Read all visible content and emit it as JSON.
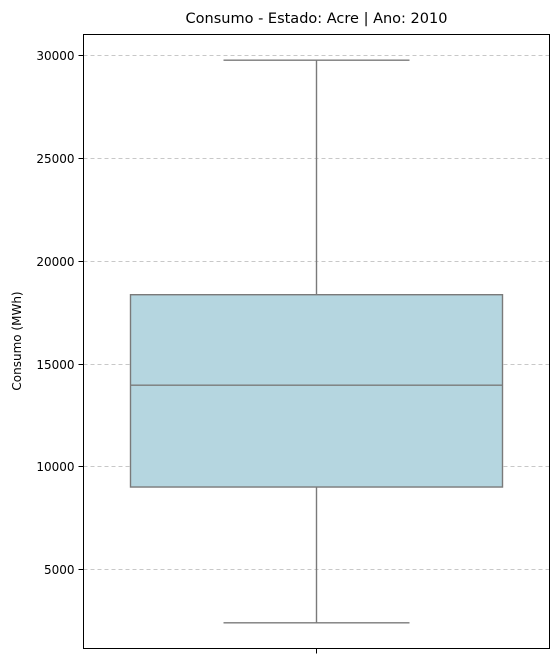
{
  "chart_data": {
    "type": "box",
    "title": "Consumo - Estado: Acre | Ano: 2010",
    "xlabel": "",
    "ylabel": "Consumo (MWh)",
    "ylim": [
      1150,
      31000
    ],
    "yticks": [
      "5000",
      "10000",
      "15000",
      "20000",
      "25000",
      "30000"
    ],
    "grid": "y-dashed",
    "box": {
      "whisker_low": 2400,
      "q1": 9000,
      "median": 13950,
      "q3": 18350,
      "whisker_high": 29750
    },
    "colors": {
      "box_fill": "#b5d6e0",
      "line": "#7a7a7a",
      "grid": "#c8c8c8"
    }
  }
}
